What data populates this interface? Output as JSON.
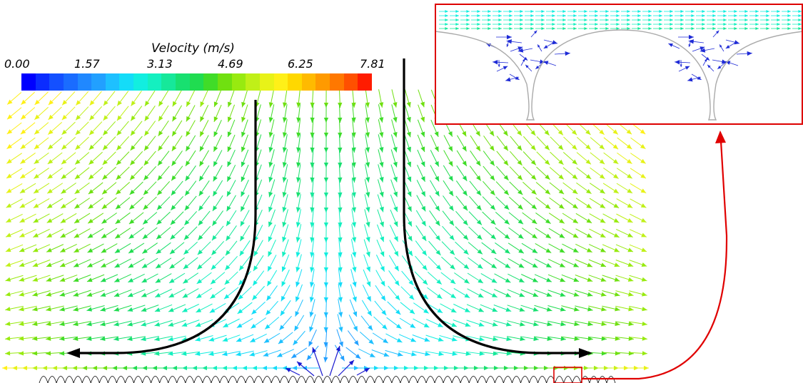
{
  "colorbar": {
    "title": "Velocity (m/s)",
    "ticks": [
      "0.00",
      "1.57",
      "3.13",
      "4.69",
      "6.25",
      "7.81"
    ],
    "colors": [
      "#0000ff",
      "#0b2cff",
      "#1450ff",
      "#1a6cff",
      "#2088ff",
      "#22a0ff",
      "#1ec0ff",
      "#14dcf8",
      "#12eee0",
      "#14f0c0",
      "#16e89a",
      "#18e070",
      "#20dc50",
      "#40dc28",
      "#70e010",
      "#98ea10",
      "#c0f018",
      "#e8f218",
      "#fff018",
      "#ffd800",
      "#ffba00",
      "#ff9a00",
      "#ff7800",
      "#ff5000",
      "#ff1c00"
    ]
  },
  "inset": {
    "frame_color": "#dd0000",
    "callout_color": "#e00000"
  },
  "surface": {
    "ridge_count": 67
  },
  "flow_arrows": {
    "color": "#000000"
  }
}
